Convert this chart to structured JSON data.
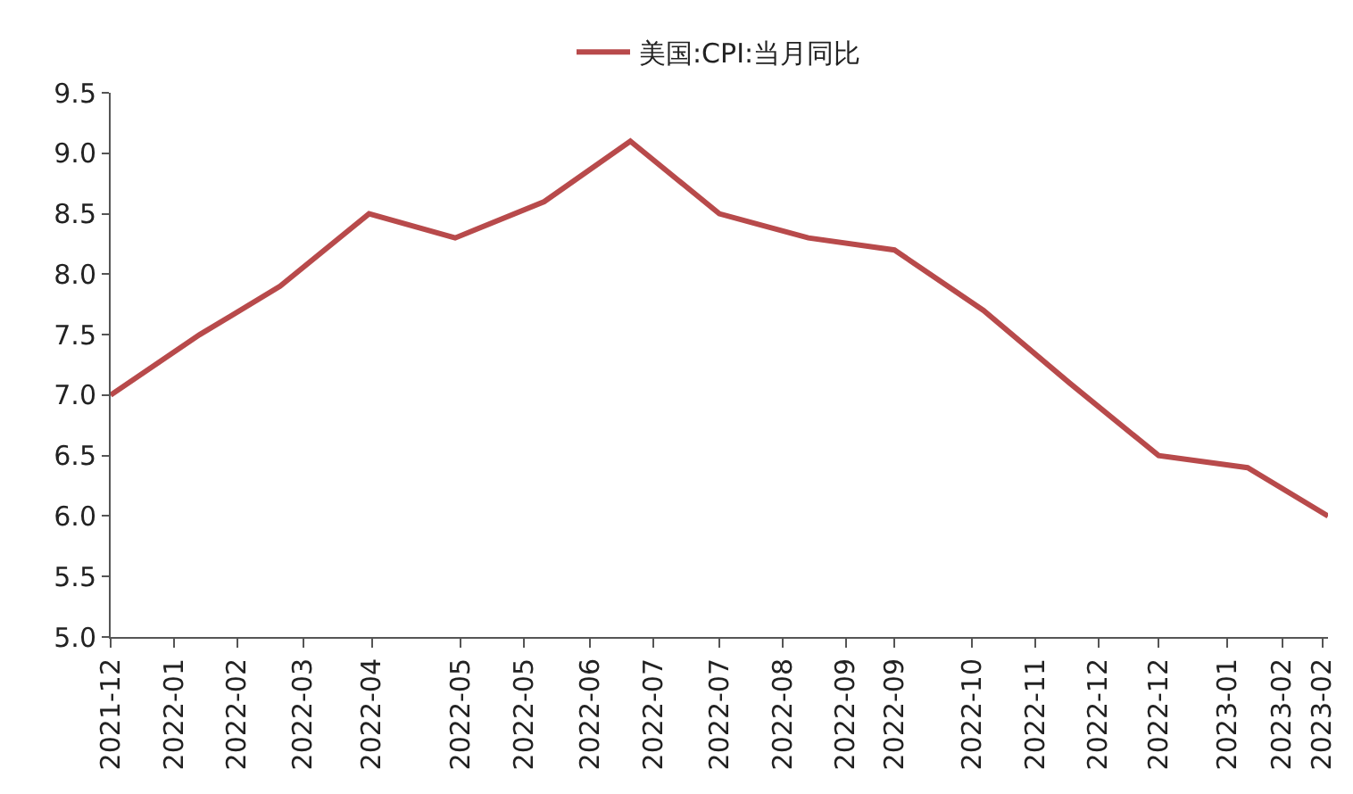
{
  "chart_data": {
    "type": "line",
    "legend": "top",
    "grid": false,
    "marker": "none",
    "line_style": "solid",
    "x": [
      "2021-12-31",
      "2022-01-31",
      "2022-02-28",
      "2022-03-31",
      "2022-04-30",
      "2022-05-31",
      "2022-06-30",
      "2022-07-31",
      "2022-08-31",
      "2022-09-30",
      "2022-10-31",
      "2022-11-30",
      "2022-12-31",
      "2023-01-31",
      "2023-02-28"
    ],
    "series": [
      {
        "name": "美国:CPI:当月同比",
        "color": "#b84a4b",
        "values": [
          7.0,
          7.5,
          7.9,
          8.5,
          8.3,
          8.6,
          9.1,
          8.5,
          8.3,
          8.2,
          7.7,
          7.1,
          6.5,
          6.4,
          6.0
        ]
      }
    ],
    "xlim": [
      "2021-12-31",
      "2023-02-28"
    ],
    "xticks": [
      {
        "value": "2021-12-31",
        "label": "2021-12"
      },
      {
        "value": "2022-01-22",
        "label": "2022-01"
      },
      {
        "value": "2022-02-13",
        "label": "2022-02"
      },
      {
        "value": "2022-03-08",
        "label": "2022-03"
      },
      {
        "value": "2022-04-01",
        "label": "2022-04"
      },
      {
        "value": "2022-05-02",
        "label": "2022-05"
      },
      {
        "value": "2022-05-24",
        "label": "2022-05"
      },
      {
        "value": "2022-06-16",
        "label": "2022-06"
      },
      {
        "value": "2022-07-08",
        "label": "2022-07"
      },
      {
        "value": "2022-07-31",
        "label": "2022-07"
      },
      {
        "value": "2022-08-22",
        "label": "2022-08"
      },
      {
        "value": "2022-09-13",
        "label": "2022-09"
      },
      {
        "value": "2022-09-30",
        "label": "2022-09"
      },
      {
        "value": "2022-10-27",
        "label": "2022-10"
      },
      {
        "value": "2022-11-18",
        "label": "2022-11"
      },
      {
        "value": "2022-12-10",
        "label": "2022-12"
      },
      {
        "value": "2022-12-31",
        "label": "2022-12"
      },
      {
        "value": "2023-01-24",
        "label": "2023-01"
      },
      {
        "value": "2023-02-12",
        "label": "2023-02"
      },
      {
        "value": "2023-02-26",
        "label": "2023-02"
      }
    ],
    "ylim": [
      5.0,
      9.5
    ],
    "yticks": [
      {
        "value": 5,
        "label": "5.0"
      },
      {
        "value": 5.5,
        "label": "5.5"
      },
      {
        "value": 6,
        "label": "6.0"
      },
      {
        "value": 6.5,
        "label": "6.5"
      },
      {
        "value": 7,
        "label": "7.0"
      },
      {
        "value": 7.5,
        "label": "7.5"
      },
      {
        "value": 8,
        "label": "8.0"
      },
      {
        "value": 8.5,
        "label": "8.5"
      },
      {
        "value": 9,
        "label": "9.0"
      },
      {
        "value": 9.5,
        "label": "9.5"
      }
    ]
  }
}
